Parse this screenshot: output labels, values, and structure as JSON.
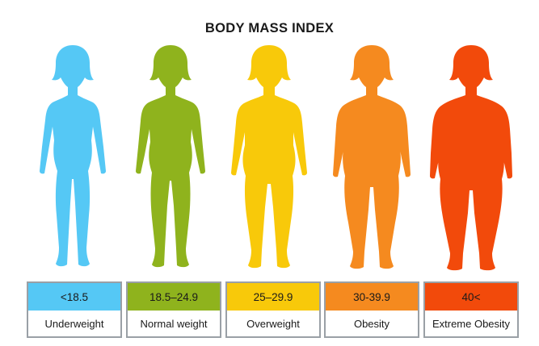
{
  "title": "BODY MASS INDEX",
  "categories": [
    {
      "range": "<18.5",
      "label": "Underweight",
      "color": "#55c8f5"
    },
    {
      "range": "18.5–24.9",
      "label": "Normal weight",
      "color": "#8fb31d"
    },
    {
      "range": "25–29.9",
      "label": "Overweight",
      "color": "#f8c90a"
    },
    {
      "range": "30-39.9",
      "label": "Obesity",
      "color": "#f58a1f"
    },
    {
      "range": "40<",
      "label": "Extreme Obesity",
      "color": "#f24a0b"
    }
  ]
}
